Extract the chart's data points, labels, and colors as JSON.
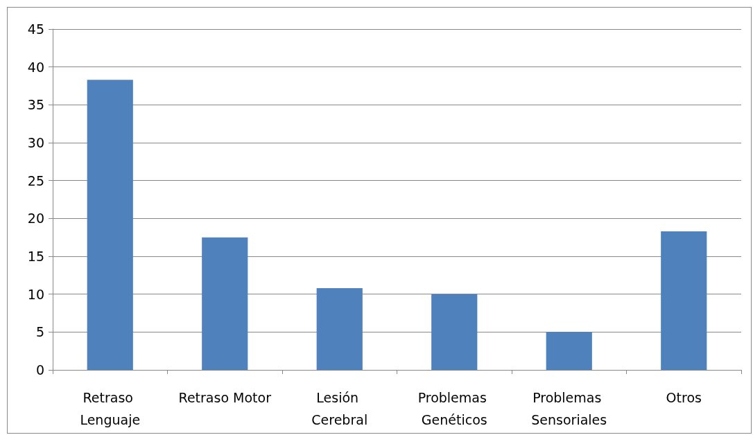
{
  "chart_data": {
    "type": "bar",
    "categories": [
      "Retraso Lenguaje",
      "Retraso Motor",
      "Lesión Cerebral",
      "Problemas Genéticos",
      "Problemas Sensoriales",
      "Otros"
    ],
    "values": [
      38.3,
      17.5,
      10.8,
      10.0,
      5.0,
      18.3
    ],
    "color": "#4f81bd",
    "ylim": [
      0,
      45
    ],
    "yticks": [
      0,
      5,
      10,
      15,
      20,
      25,
      30,
      35,
      40,
      45
    ],
    "grid": "y"
  }
}
